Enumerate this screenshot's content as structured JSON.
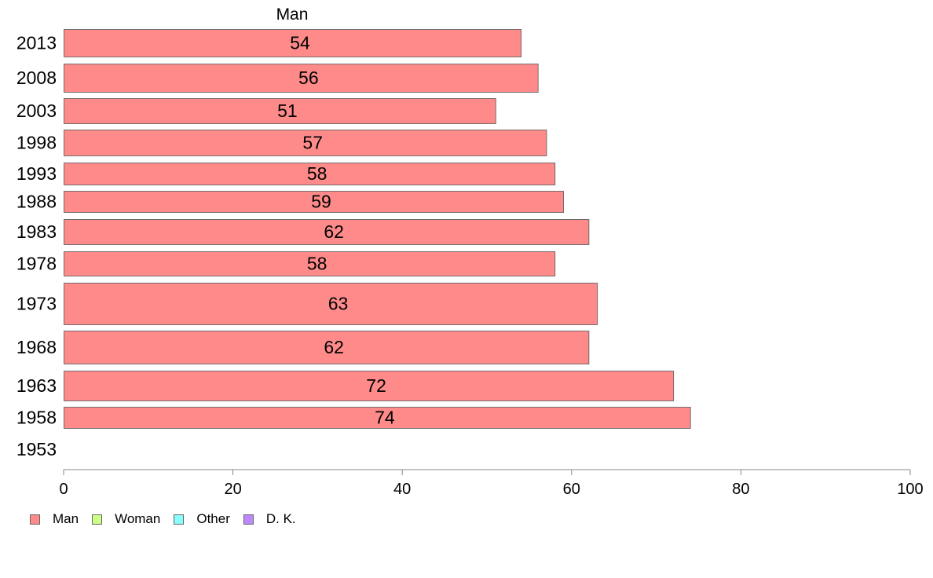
{
  "chart_data": {
    "type": "bar",
    "orientation": "horizontal",
    "title": "Man",
    "categories": [
      "2013",
      "2008",
      "2003",
      "1998",
      "1993",
      "1988",
      "1983",
      "1978",
      "1973",
      "1968",
      "1963",
      "1958",
      "1953"
    ],
    "series": [
      {
        "name": "Man",
        "color": "#ff8a8a",
        "values": [
          54,
          56,
          51,
          57,
          58,
          59,
          62,
          58,
          63,
          62,
          72,
          74,
          null
        ]
      }
    ],
    "data_labels": [
      "54",
      "56",
      "51",
      "57",
      "58",
      "59",
      "62",
      "58",
      "63",
      "62",
      "72",
      "74",
      ""
    ],
    "xlim": [
      0,
      100
    ],
    "xticks": [
      0,
      20,
      40,
      60,
      80,
      100
    ],
    "xlabel": "",
    "ylabel": "",
    "grid": false,
    "legend_position": "bottom-left"
  },
  "legend": [
    {
      "label": "Man",
      "color": "#ff8a8a"
    },
    {
      "label": "Woman",
      "color": "#ccff88"
    },
    {
      "label": "Other",
      "color": "#88ffff"
    },
    {
      "label": "D. K.",
      "color": "#bb88ff"
    }
  ]
}
